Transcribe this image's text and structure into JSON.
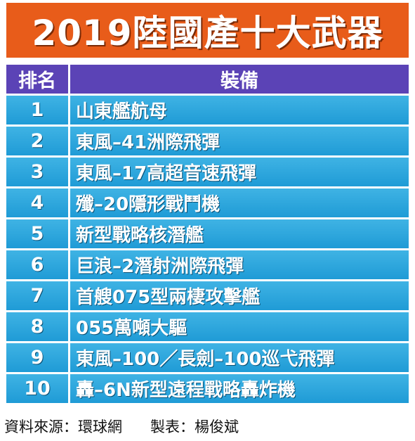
{
  "title": "2019陸國產十大武器",
  "table": {
    "headers": {
      "rank": "排名",
      "item": "裝備"
    },
    "rows": [
      {
        "rank": "1",
        "item": "山東艦航母"
      },
      {
        "rank": "2",
        "item": "東風–41洲際飛彈"
      },
      {
        "rank": "3",
        "item": "東風–17高超音速飛彈"
      },
      {
        "rank": "4",
        "item": "殲–20隱形戰鬥機"
      },
      {
        "rank": "5",
        "item": "新型戰略核潛艦"
      },
      {
        "rank": "6",
        "item": "巨浪–2潛射洲際飛彈"
      },
      {
        "rank": "7",
        "item": "首艘075型兩棲攻擊艦"
      },
      {
        "rank": "8",
        "item": "055萬噸大驅"
      },
      {
        "rank": "9",
        "item": "東風–100／長劍–100巡弋飛彈"
      },
      {
        "rank": "10",
        "item": "轟–6N新型遠程戰略轟炸機"
      }
    ]
  },
  "footer": {
    "source": "資料來源：環球網",
    "credit": "製表：楊俊斌"
  },
  "colors": {
    "banner": "#e85c1a",
    "header": "#5b43b6",
    "row": "#1f9bd6"
  }
}
